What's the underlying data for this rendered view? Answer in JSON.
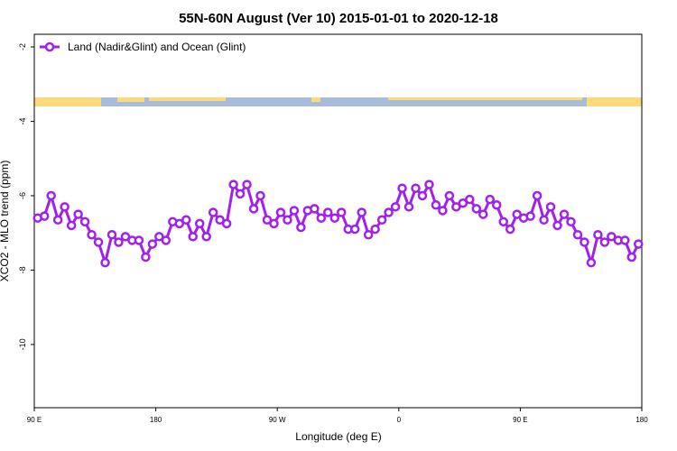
{
  "chart_data": {
    "type": "line",
    "title": "55N-60N August (Ver 10)   2015-01-01 to 2020-12-18",
    "x_label": "Longitude (deg E)",
    "y_label": "XCO2 - MLO trend (ppm)",
    "legend": "top-left",
    "x": [
      92.5,
      97.5,
      102.5,
      107.5,
      112.5,
      117.5,
      122.5,
      127.5,
      132.5,
      137.5,
      142.5,
      147.5,
      152.5,
      157.5,
      162.5,
      167.5,
      172.5,
      177.5,
      182.5,
      187.5,
      192.5,
      197.5,
      202.5,
      207.5,
      212.5,
      217.5,
      222.5,
      227.5,
      232.5,
      237.5,
      242.5,
      247.5,
      252.5,
      257.5,
      262.5,
      267.5,
      272.5,
      277.5,
      282.5,
      287.5,
      292.5,
      297.5,
      302.5,
      307.5,
      312.5,
      317.5,
      322.5,
      327.5,
      332.5,
      337.5,
      342.5,
      347.5,
      352.5,
      357.5,
      362.5,
      367.5,
      372.5,
      377.5,
      382.5,
      387.5,
      392.5,
      397.5,
      402.5,
      407.5,
      412.5,
      417.5,
      422.5,
      427.5,
      432.5,
      437.5,
      442.5,
      447.5,
      452.5,
      457.5,
      462.5,
      467.5,
      472.5,
      477.5,
      482.5,
      487.5,
      492.5,
      497.5,
      502.5,
      507.5,
      512.5,
      517.5,
      522.5,
      527.5,
      532.5,
      537.5
    ],
    "series": [
      {
        "name": "Land (Nadir&Glint) and Ocean (Glint)",
        "color": "#a020f0",
        "values": [
          -6.6,
          -6.55,
          -6.0,
          -6.65,
          -6.3,
          -6.8,
          -6.5,
          -6.7,
          -7.05,
          -7.25,
          -7.8,
          -7.05,
          -7.25,
          -7.1,
          -7.2,
          -7.2,
          -7.65,
          -7.3,
          -7.1,
          -7.2,
          -6.7,
          -6.75,
          -6.65,
          -7.1,
          -6.75,
          -7.1,
          -6.45,
          -6.65,
          -6.75,
          -5.7,
          -5.95,
          -5.7,
          -6.35,
          -6.0,
          -6.65,
          -6.75,
          -6.45,
          -6.65,
          -6.4,
          -6.85,
          -6.4,
          -6.35,
          -6.6,
          -6.45,
          -6.6,
          -6.45,
          -6.9,
          -6.9,
          -6.45,
          -7.05,
          -6.9,
          -6.65,
          -6.45,
          -6.3,
          -5.8,
          -6.3,
          -5.8,
          -6.0,
          -5.7,
          -6.25,
          -6.4,
          -6.0,
          -6.3,
          -6.2,
          -6.1,
          -6.35,
          -6.5,
          -6.1,
          -6.25,
          -6.7,
          -6.9,
          -6.5,
          -6.6,
          -6.55,
          -6.0,
          -6.65,
          -6.3,
          -6.8,
          -6.5,
          -6.7,
          -7.05,
          -7.25,
          -7.8,
          -7.05,
          -7.25,
          -7.1,
          -7.2,
          -7.2,
          -7.65,
          -7.3
        ]
      }
    ],
    "xlim": [
      90,
      540
    ],
    "xticks": [
      {
        "value": 90,
        "label": "90 E"
      },
      180,
      {
        "value": 270,
        "label": "90 W"
      },
      {
        "value": 360,
        "label": "0"
      },
      {
        "value": 450,
        "label": "90 E"
      },
      180
    ],
    "ylim": [
      -11.7,
      -1.66
    ],
    "yticks": [
      -2,
      -4,
      -6,
      -8,
      -10
    ]
  }
}
